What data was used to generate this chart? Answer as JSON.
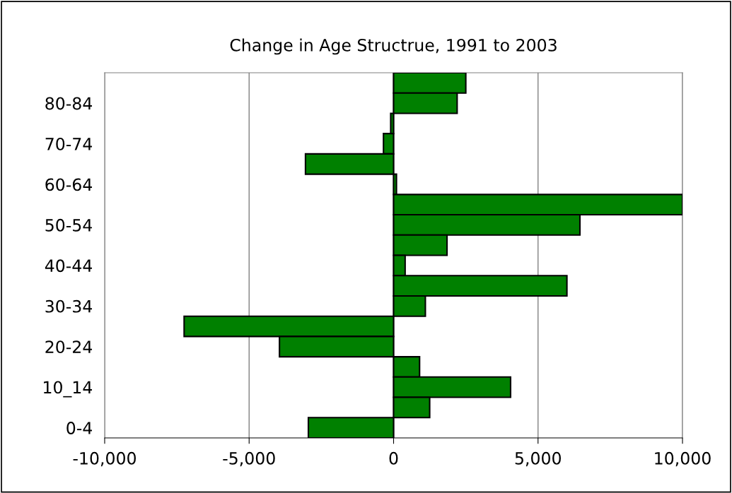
{
  "chart_data": {
    "type": "bar",
    "orientation": "horizontal",
    "title": "Change in Age Structrue, 1991 to 2003",
    "categories": [
      null,
      "80-84",
      null,
      "70-74",
      null,
      "60-64",
      null,
      "50-54",
      null,
      "40-44",
      null,
      "30-34",
      null,
      "20-24",
      null,
      "10_14",
      null,
      "0-4"
    ],
    "values": [
      2500,
      2200,
      -100,
      -350,
      -3050,
      100,
      10000,
      6450,
      1850,
      400,
      6000,
      1100,
      -7250,
      -3950,
      900,
      4050,
      1250,
      -2950
    ],
    "color": "#008000",
    "xlim": [
      -10000,
      10000
    ],
    "xticks": [
      {
        "value": -10000,
        "label": "-10,000"
      },
      {
        "value": -5000,
        "label": "-5,000"
      },
      0,
      {
        "value": 5000,
        "label": "5,000"
      },
      {
        "value": 10000,
        "label": "10,000"
      }
    ],
    "grid": "x",
    "legend": false
  }
}
